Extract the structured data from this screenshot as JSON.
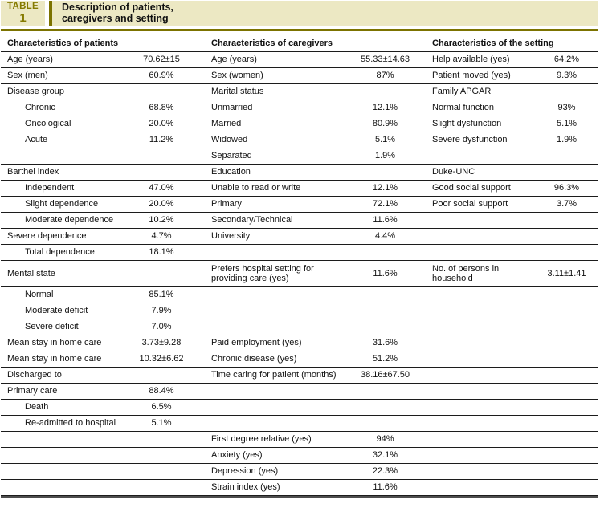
{
  "badge": {
    "line1": "TABLE",
    "line2": "1"
  },
  "title": "Description of patients,\ncaregivers and setting",
  "column_headers": [
    "Characteristics of patients",
    "Characteristics of caregivers",
    "Characteristics of the setting"
  ],
  "colors": {
    "header_band_bg": "#ece8c3",
    "olive_accent": "#7c7300",
    "badge_text": "#857a00",
    "row_line": "#1c1c1c",
    "bottom_rule": "#4d4d4d",
    "text": "#111111"
  },
  "rows": [
    {
      "patients": {
        "label": "Age (years)",
        "value": "70.62±15"
      },
      "caregivers": {
        "label": "Age (years)",
        "value": "55.33±14.63"
      },
      "setting": {
        "label": "Help available (yes)",
        "value": "64.2%"
      }
    },
    {
      "patients": {
        "label": "Sex (men)",
        "value": "60.9%"
      },
      "caregivers": {
        "label": "Sex (women)",
        "value": "87%"
      },
      "setting": {
        "label": "Patient moved (yes)",
        "value": "9.3%"
      }
    },
    {
      "patients": {
        "label": "Disease group"
      },
      "caregivers": {
        "label": "Marital status"
      },
      "setting": {
        "label": "Family APGAR"
      }
    },
    {
      "patients": {
        "label": "Chronic",
        "value": "68.8%",
        "indent": true
      },
      "caregivers": {
        "label": "Unmarried",
        "value": "12.1%"
      },
      "setting": {
        "label": "Normal function",
        "value": "93%"
      }
    },
    {
      "patients": {
        "label": "Oncological",
        "value": "20.0%",
        "indent": true
      },
      "caregivers": {
        "label": "Married",
        "value": "80.9%"
      },
      "setting": {
        "label": "Slight dysfunction",
        "value": "5.1%"
      }
    },
    {
      "patients": {
        "label": "Acute",
        "value": "11.2%",
        "indent": true
      },
      "caregivers": {
        "label": "Widowed",
        "value": "5.1%"
      },
      "setting": {
        "label": "Severe dysfunction",
        "value": "1.9%"
      }
    },
    {
      "patients": {},
      "caregivers": {
        "label": "Separated",
        "value": "1.9%"
      },
      "setting": {}
    },
    {
      "patients": {
        "label": "Barthel index"
      },
      "caregivers": {
        "label": "Education"
      },
      "setting": {
        "label": "Duke-UNC"
      }
    },
    {
      "patients": {
        "label": "Independent",
        "value": "47.0%",
        "indent": true
      },
      "caregivers": {
        "label": "Unable to read or write",
        "value": "12.1%"
      },
      "setting": {
        "label": "Good social support",
        "value": "96.3%"
      }
    },
    {
      "patients": {
        "label": "Slight dependence",
        "value": "20.0%",
        "indent": true
      },
      "caregivers": {
        "label": "Primary",
        "value": "72.1%"
      },
      "setting": {
        "label": "Poor social support",
        "value": "3.7%"
      }
    },
    {
      "patients": {
        "label": "Moderate dependence",
        "value": "10.2%",
        "indent": true
      },
      "caregivers": {
        "label": "Secondary/Technical",
        "value": "11.6%"
      },
      "setting": {}
    },
    {
      "patients": {
        "label": "Severe dependence",
        "value": "4.7%"
      },
      "caregivers": {
        "label": "University",
        "value": "4.4%"
      },
      "setting": {}
    },
    {
      "patients": {
        "label": "Total dependence",
        "value": "18.1%",
        "indent": true
      },
      "caregivers": {},
      "setting": {}
    },
    {
      "tall": true,
      "patients": {
        "label": "Mental state"
      },
      "caregivers": {
        "label": "Prefers hospital setting for\nproviding care (yes)",
        "value": "11.6%"
      },
      "setting": {
        "label": "No. of persons in\nhousehold",
        "value": "3.11±1.41"
      }
    },
    {
      "patients": {
        "label": "Normal",
        "value": "85.1%",
        "indent": true
      },
      "caregivers": {},
      "setting": {}
    },
    {
      "patients": {
        "label": "Moderate deficit",
        "value": "7.9%",
        "indent": true
      },
      "caregivers": {},
      "setting": {}
    },
    {
      "patients": {
        "label": "Severe deficit",
        "value": "7.0%",
        "indent": true
      },
      "caregivers": {},
      "setting": {}
    },
    {
      "patients": {
        "label": "Mean stay in home care",
        "value": "3.73±9.28"
      },
      "caregivers": {
        "label": "Paid employment (yes)",
        "value": "31.6%"
      },
      "setting": {}
    },
    {
      "patients": {
        "label": "Mean stay in home care",
        "value": "10.32±6.62"
      },
      "caregivers": {
        "label": "Chronic disease (yes)",
        "value": "51.2%"
      },
      "setting": {}
    },
    {
      "patients": {
        "label": "Discharged to"
      },
      "caregivers": {
        "label": "Time caring for patient (months)",
        "value": "38.16±67.50"
      },
      "setting": {}
    },
    {
      "patients": {
        "label": "Primary care",
        "value": "88.4%"
      },
      "caregivers": {},
      "setting": {}
    },
    {
      "patients": {
        "label": "Death",
        "value": "6.5%",
        "indent": true
      },
      "caregivers": {},
      "setting": {}
    },
    {
      "patients": {
        "label": "Re-admitted to hospital",
        "value": "5.1%",
        "indent": true
      },
      "caregivers": {},
      "setting": {}
    },
    {
      "patients": {},
      "caregivers": {
        "label": "First degree relative (yes)",
        "value": "94%"
      },
      "setting": {}
    },
    {
      "patients": {},
      "caregivers": {
        "label": "Anxiety (yes)",
        "value": "32.1%"
      },
      "setting": {}
    },
    {
      "patients": {},
      "caregivers": {
        "label": "Depression (yes)",
        "value": "22.3%"
      },
      "setting": {}
    },
    {
      "patients": {},
      "caregivers": {
        "label": "Strain index (yes)",
        "value": "11.6%"
      },
      "setting": {}
    }
  ]
}
